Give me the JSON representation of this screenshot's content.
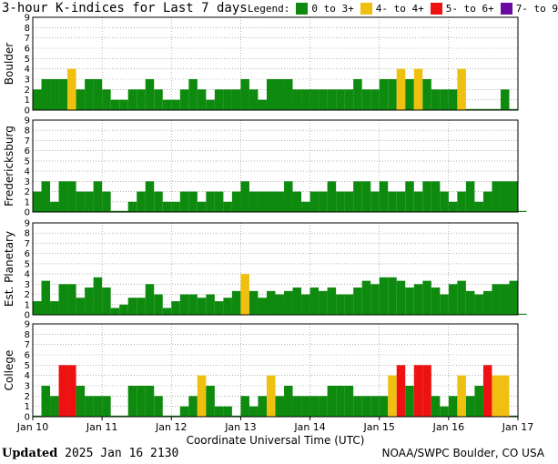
{
  "title": "3-hour K-indices for Last 7 days",
  "legend": {
    "label": "Legend:",
    "items": [
      {
        "label": "0 to 3+",
        "color": "#0e8a0e"
      },
      {
        "label": "4- to 4+",
        "color": "#f0c010"
      },
      {
        "label": "5- to 6+",
        "color": "#ee1111"
      },
      {
        "label": "7- to 9",
        "color": "#6a0aa0"
      }
    ]
  },
  "footer": {
    "updated_label": "Updated",
    "updated_value": "2025 Jan 16 2130",
    "credit": "NOAA/SWPC Boulder, CO USA"
  },
  "chart_data": {
    "type": "bar",
    "xlabel": "Coordinate Universal Time (UTC)",
    "x_ticks": [
      "Jan 10",
      "Jan 11",
      "Jan 12",
      "Jan 13",
      "Jan 14",
      "Jan 15",
      "Jan 16",
      "Jan 17"
    ],
    "ylim": [
      0,
      9
    ],
    "y_ticks": [
      "0",
      "1",
      "2",
      "3",
      "4",
      "5",
      "6",
      "7",
      "8",
      "9"
    ],
    "grid": true,
    "panels": [
      {
        "name": "Boulder",
        "values": [
          2,
          3,
          3,
          3,
          4,
          2,
          3,
          3,
          2,
          1,
          1,
          2,
          2,
          3,
          2,
          1,
          1,
          2,
          3,
          2,
          1,
          2,
          2,
          2,
          3,
          2,
          1,
          3,
          3,
          3,
          2,
          2,
          2,
          2,
          2,
          2,
          2,
          3,
          2,
          2,
          3,
          3,
          4,
          3,
          4,
          3,
          2,
          2,
          2,
          4,
          0,
          0,
          0,
          0,
          2,
          0
        ]
      },
      {
        "name": "Fredericksburg",
        "values": [
          2,
          3,
          1,
          3,
          3,
          2,
          2,
          3,
          2,
          0,
          0,
          1,
          2,
          3,
          2,
          1,
          1,
          2,
          2,
          1,
          2,
          2,
          1,
          2,
          3,
          2,
          2,
          2,
          2,
          3,
          2,
          1,
          2,
          2,
          3,
          2,
          2,
          3,
          3,
          2,
          3,
          2,
          2,
          3,
          2,
          3,
          3,
          2,
          1,
          2,
          3,
          1,
          2,
          3,
          3,
          3,
          0
        ]
      },
      {
        "name": "Est. Planetary",
        "values": [
          1.33,
          3.33,
          1.33,
          3,
          3,
          1.67,
          2.67,
          3.67,
          2.67,
          0.67,
          1,
          1.67,
          1.67,
          3,
          2,
          0.67,
          1.33,
          2,
          2,
          1.67,
          2,
          1.33,
          1.67,
          2.33,
          4,
          2.33,
          1.67,
          2.33,
          2,
          2.33,
          2.67,
          2,
          2.67,
          2.33,
          2.67,
          2,
          2,
          2.67,
          3.33,
          3,
          3.67,
          3.67,
          3.33,
          2.67,
          3,
          3.33,
          2.67,
          2,
          3,
          3.33,
          2.33,
          2,
          2.33,
          3,
          3,
          3.33,
          0
        ]
      },
      {
        "name": "College",
        "values": [
          0,
          3,
          2,
          5,
          5,
          3,
          2,
          2,
          2,
          0,
          0,
          3,
          3,
          3,
          2,
          0,
          0,
          1,
          2,
          4,
          3,
          1,
          1,
          0,
          2,
          1,
          2,
          4,
          2,
          3,
          2,
          2,
          2,
          2,
          3,
          3,
          3,
          2,
          2,
          2,
          2,
          4,
          5,
          3,
          5,
          5,
          2,
          1,
          2,
          4,
          2,
          3,
          5,
          4,
          4,
          0
        ]
      }
    ]
  }
}
